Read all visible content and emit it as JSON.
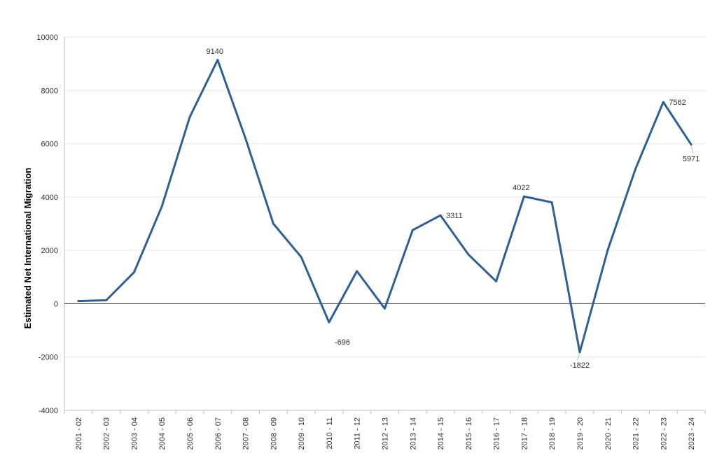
{
  "chart_data": {
    "type": "line",
    "title": "",
    "xlabel": "",
    "ylabel": "Estimated Net International Migration",
    "ylim": [
      -4000,
      10000
    ],
    "yticks": [
      -4000,
      -2000,
      0,
      2000,
      4000,
      6000,
      8000,
      10000
    ],
    "grid": true,
    "categories": [
      "2001 - 02",
      "2002 - 03",
      "2003 - 04",
      "2004 - 05",
      "2005 - 06",
      "2006 - 07",
      "2007 - 08",
      "2008 - 09",
      "2009 - 10",
      "2010 - 11",
      "2011 - 12",
      "2012 - 13",
      "2013 - 14",
      "2014 - 15",
      "2015 - 16",
      "2016 - 17",
      "2017 - 18",
      "2018 - 19",
      "2019 - 20",
      "2020 - 21",
      "2021 - 22",
      "2022 - 23",
      "2023 - 24"
    ],
    "series": [
      {
        "color": "#2e6096",
        "values": [
          100,
          130,
          1180,
          3650,
          7000,
          9140,
          6200,
          3000,
          1750,
          -696,
          1220,
          -180,
          2760,
          3311,
          1850,
          840,
          4022,
          3800,
          -1822,
          2000,
          5050,
          7562,
          5971
        ]
      }
    ],
    "annotations": [
      {
        "index": 5,
        "text": "9140"
      },
      {
        "index": 9,
        "text": "-696"
      },
      {
        "index": 13,
        "text": "3311"
      },
      {
        "index": 16,
        "text": "4022"
      },
      {
        "index": 18,
        "text": "-1822"
      },
      {
        "index": 21,
        "text": "7562"
      },
      {
        "index": 22,
        "text": "5971"
      }
    ]
  }
}
